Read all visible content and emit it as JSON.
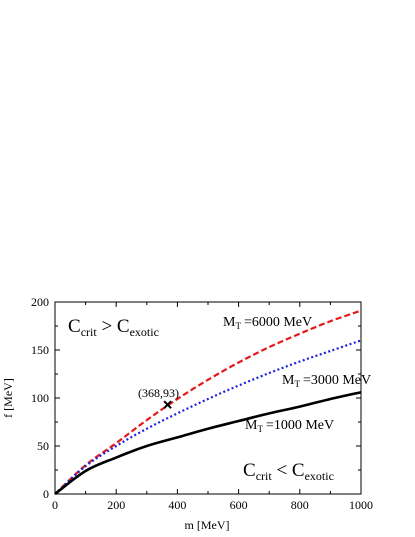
{
  "chart_data": {
    "type": "line",
    "xlabel": "m [MeV]",
    "ylabel": "f [MeV]",
    "xlim": [
      0,
      1000
    ],
    "ylim": [
      0,
      200
    ],
    "x_ticks": [
      "0",
      "200",
      "400",
      "600",
      "800",
      "1000"
    ],
    "y_ticks": [
      "0",
      "50",
      "100",
      "150",
      "200"
    ],
    "grid": false,
    "series": [
      {
        "name_main": "M",
        "name_sub": "T",
        "name_rest": "=6000 MeV",
        "color": "#e31a1c",
        "style": "dashed",
        "x": [
          0,
          100,
          200,
          300,
          400,
          500,
          600,
          700,
          800,
          900,
          1000
        ],
        "y": [
          0,
          30,
          53,
          77,
          99,
          119,
          137,
          153,
          167,
          180,
          191
        ]
      },
      {
        "name_main": "M",
        "name_sub": "T",
        "name_rest": "=3000 MeV",
        "color": "#1f1fe0",
        "style": "dotted",
        "x": [
          0,
          100,
          200,
          300,
          400,
          500,
          600,
          700,
          800,
          900,
          1000
        ],
        "y": [
          0,
          29,
          50,
          68,
          84,
          99,
          113,
          126,
          138,
          149,
          160
        ]
      },
      {
        "name_main": "M",
        "name_sub": "T",
        "name_rest": "=1000 MeV",
        "color": "#000000",
        "style": "solid",
        "x": [
          0,
          100,
          200,
          300,
          400,
          500,
          600,
          700,
          800,
          900,
          1000
        ],
        "y": [
          0,
          24,
          38,
          50,
          59,
          68,
          76,
          84,
          91,
          99,
          106
        ]
      }
    ],
    "point": {
      "x": 368,
      "y": 93,
      "label": "(368,93)",
      "marker": "x"
    },
    "annotations": [
      {
        "main": "C",
        "sub1": "crit",
        "op": " > ",
        "main2": "C",
        "sub2": "exotic"
      },
      {
        "main": "C",
        "sub1": "crit",
        "op": " < ",
        "main2": "C",
        "sub2": "exotic"
      }
    ]
  }
}
